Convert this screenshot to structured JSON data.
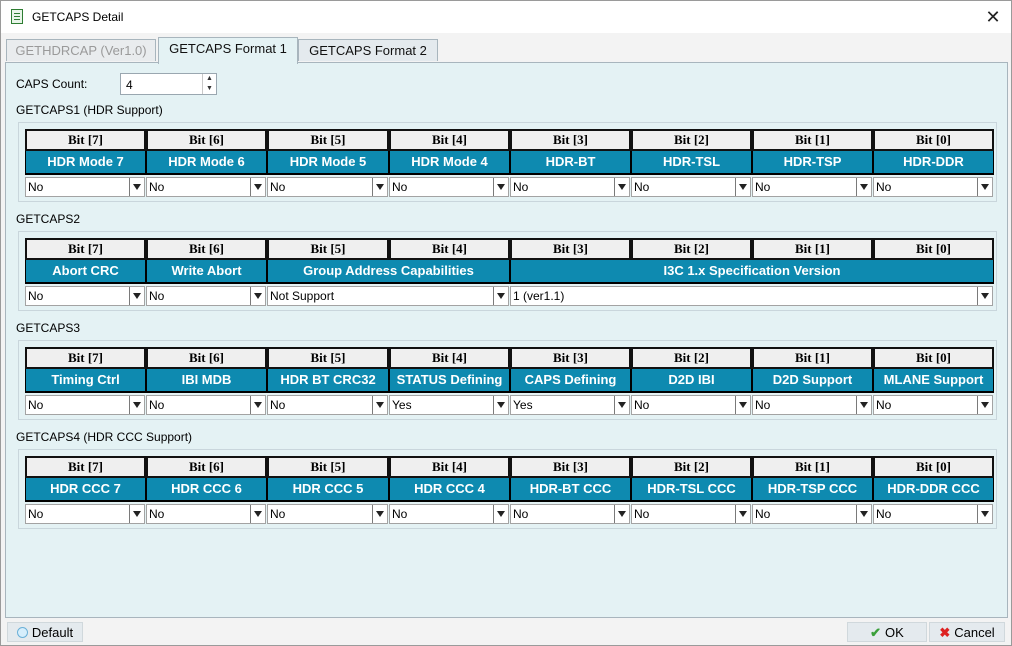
{
  "window": {
    "title": "GETCAPS Detail"
  },
  "tabs": [
    {
      "label": "GETHDRCAP (Ver1.0)",
      "state": "disabled"
    },
    {
      "label": "GETCAPS Format 1",
      "state": "active"
    },
    {
      "label": "GETCAPS Format 2",
      "state": "normal"
    }
  ],
  "caps_count": {
    "label": "CAPS Count:",
    "value": "4"
  },
  "groups": [
    {
      "title": "GETCAPS1 (HDR Support)",
      "bits": [
        "Bit [7]",
        "Bit [6]",
        "Bit [5]",
        "Bit [4]",
        "Bit [3]",
        "Bit [2]",
        "Bit [1]",
        "Bit [0]"
      ],
      "fields": [
        {
          "name": "HDR Mode 7",
          "value": "No",
          "span": 1
        },
        {
          "name": "HDR Mode 6",
          "value": "No",
          "span": 1
        },
        {
          "name": "HDR Mode 5",
          "value": "No",
          "span": 1
        },
        {
          "name": "HDR Mode 4",
          "value": "No",
          "span": 1
        },
        {
          "name": "HDR-BT",
          "value": "No",
          "span": 1
        },
        {
          "name": "HDR-TSL",
          "value": "No",
          "span": 1
        },
        {
          "name": "HDR-TSP",
          "value": "No",
          "span": 1
        },
        {
          "name": "HDR-DDR",
          "value": "No",
          "span": 1
        }
      ]
    },
    {
      "title": "GETCAPS2",
      "bits": [
        "Bit [7]",
        "Bit [6]",
        "Bit [5]",
        "Bit [4]",
        "Bit [3]",
        "Bit [2]",
        "Bit [1]",
        "Bit [0]"
      ],
      "fields": [
        {
          "name": "Abort CRC",
          "value": "No",
          "span": 1
        },
        {
          "name": "Write Abort",
          "value": "No",
          "span": 1
        },
        {
          "name": "Group Address Capabilities",
          "value": "Not Support",
          "span": 2
        },
        {
          "name": "I3C 1.x Specification Version",
          "value": "1 (ver1.1)",
          "span": 4
        }
      ]
    },
    {
      "title": "GETCAPS3",
      "bits": [
        "Bit [7]",
        "Bit [6]",
        "Bit [5]",
        "Bit [4]",
        "Bit [3]",
        "Bit [2]",
        "Bit [1]",
        "Bit [0]"
      ],
      "fields": [
        {
          "name": "Timing Ctrl",
          "value": "No",
          "span": 1
        },
        {
          "name": "IBI MDB",
          "value": "No",
          "span": 1
        },
        {
          "name": "HDR BT CRC32",
          "value": "No",
          "span": 1
        },
        {
          "name": "STATUS Defining",
          "value": "Yes",
          "span": 1
        },
        {
          "name": "CAPS Defining",
          "value": "Yes",
          "span": 1
        },
        {
          "name": "D2D IBI",
          "value": "No",
          "span": 1
        },
        {
          "name": "D2D Support",
          "value": "No",
          "span": 1
        },
        {
          "name": "MLANE Support",
          "value": "No",
          "span": 1
        }
      ]
    },
    {
      "title": "GETCAPS4 (HDR CCC Support)",
      "bits": [
        "Bit [7]",
        "Bit [6]",
        "Bit [5]",
        "Bit [4]",
        "Bit [3]",
        "Bit [2]",
        "Bit [1]",
        "Bit [0]"
      ],
      "fields": [
        {
          "name": "HDR CCC 7",
          "value": "No",
          "span": 1
        },
        {
          "name": "HDR CCC 6",
          "value": "No",
          "span": 1
        },
        {
          "name": "HDR CCC 5",
          "value": "No",
          "span": 1
        },
        {
          "name": "HDR CCC 4",
          "value": "No",
          "span": 1
        },
        {
          "name": "HDR-BT CCC",
          "value": "No",
          "span": 1
        },
        {
          "name": "HDR-TSL CCC",
          "value": "No",
          "span": 1
        },
        {
          "name": "HDR-TSP CCC",
          "value": "No",
          "span": 1
        },
        {
          "name": "HDR-DDR CCC",
          "value": "No",
          "span": 1
        }
      ]
    }
  ],
  "footer": {
    "default_label": "Default",
    "ok_label": "OK",
    "cancel_label": "Cancel"
  },
  "colors": {
    "field_header_bg": "#0e8ab0",
    "panel_bg": "#e4f2f4"
  }
}
